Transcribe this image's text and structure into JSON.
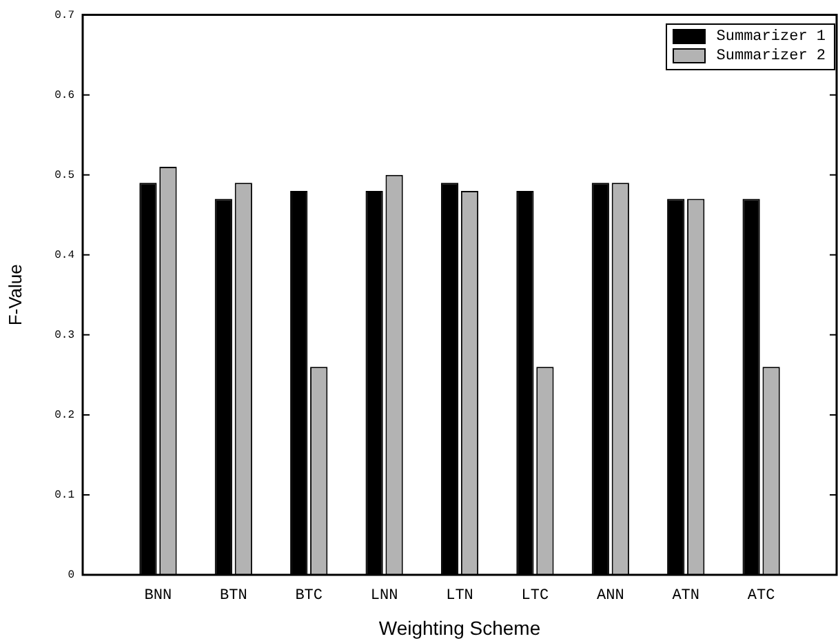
{
  "chart_data": {
    "type": "bar",
    "xlabel": "Weighting Scheme",
    "ylabel": "F-Value",
    "categories": [
      "BNN",
      "BTN",
      "BTC",
      "LNN",
      "LTN",
      "LTC",
      "ANN",
      "ATN",
      "ATC"
    ],
    "series": [
      {
        "name": "Summarizer 1",
        "color": "#000000",
        "values": [
          0.49,
          0.47,
          0.48,
          0.48,
          0.49,
          0.48,
          0.49,
          0.47,
          0.47
        ]
      },
      {
        "name": "Summarizer 2",
        "color": "#b3b3b3",
        "values": [
          0.51,
          0.49,
          0.26,
          0.5,
          0.48,
          0.26,
          0.49,
          0.47,
          0.26
        ]
      }
    ],
    "ylim": [
      0,
      0.7
    ],
    "yticks": [
      0,
      0.1,
      0.2,
      0.3,
      0.4,
      0.5,
      0.6,
      0.7
    ],
    "grid": false,
    "legend": "top right"
  }
}
